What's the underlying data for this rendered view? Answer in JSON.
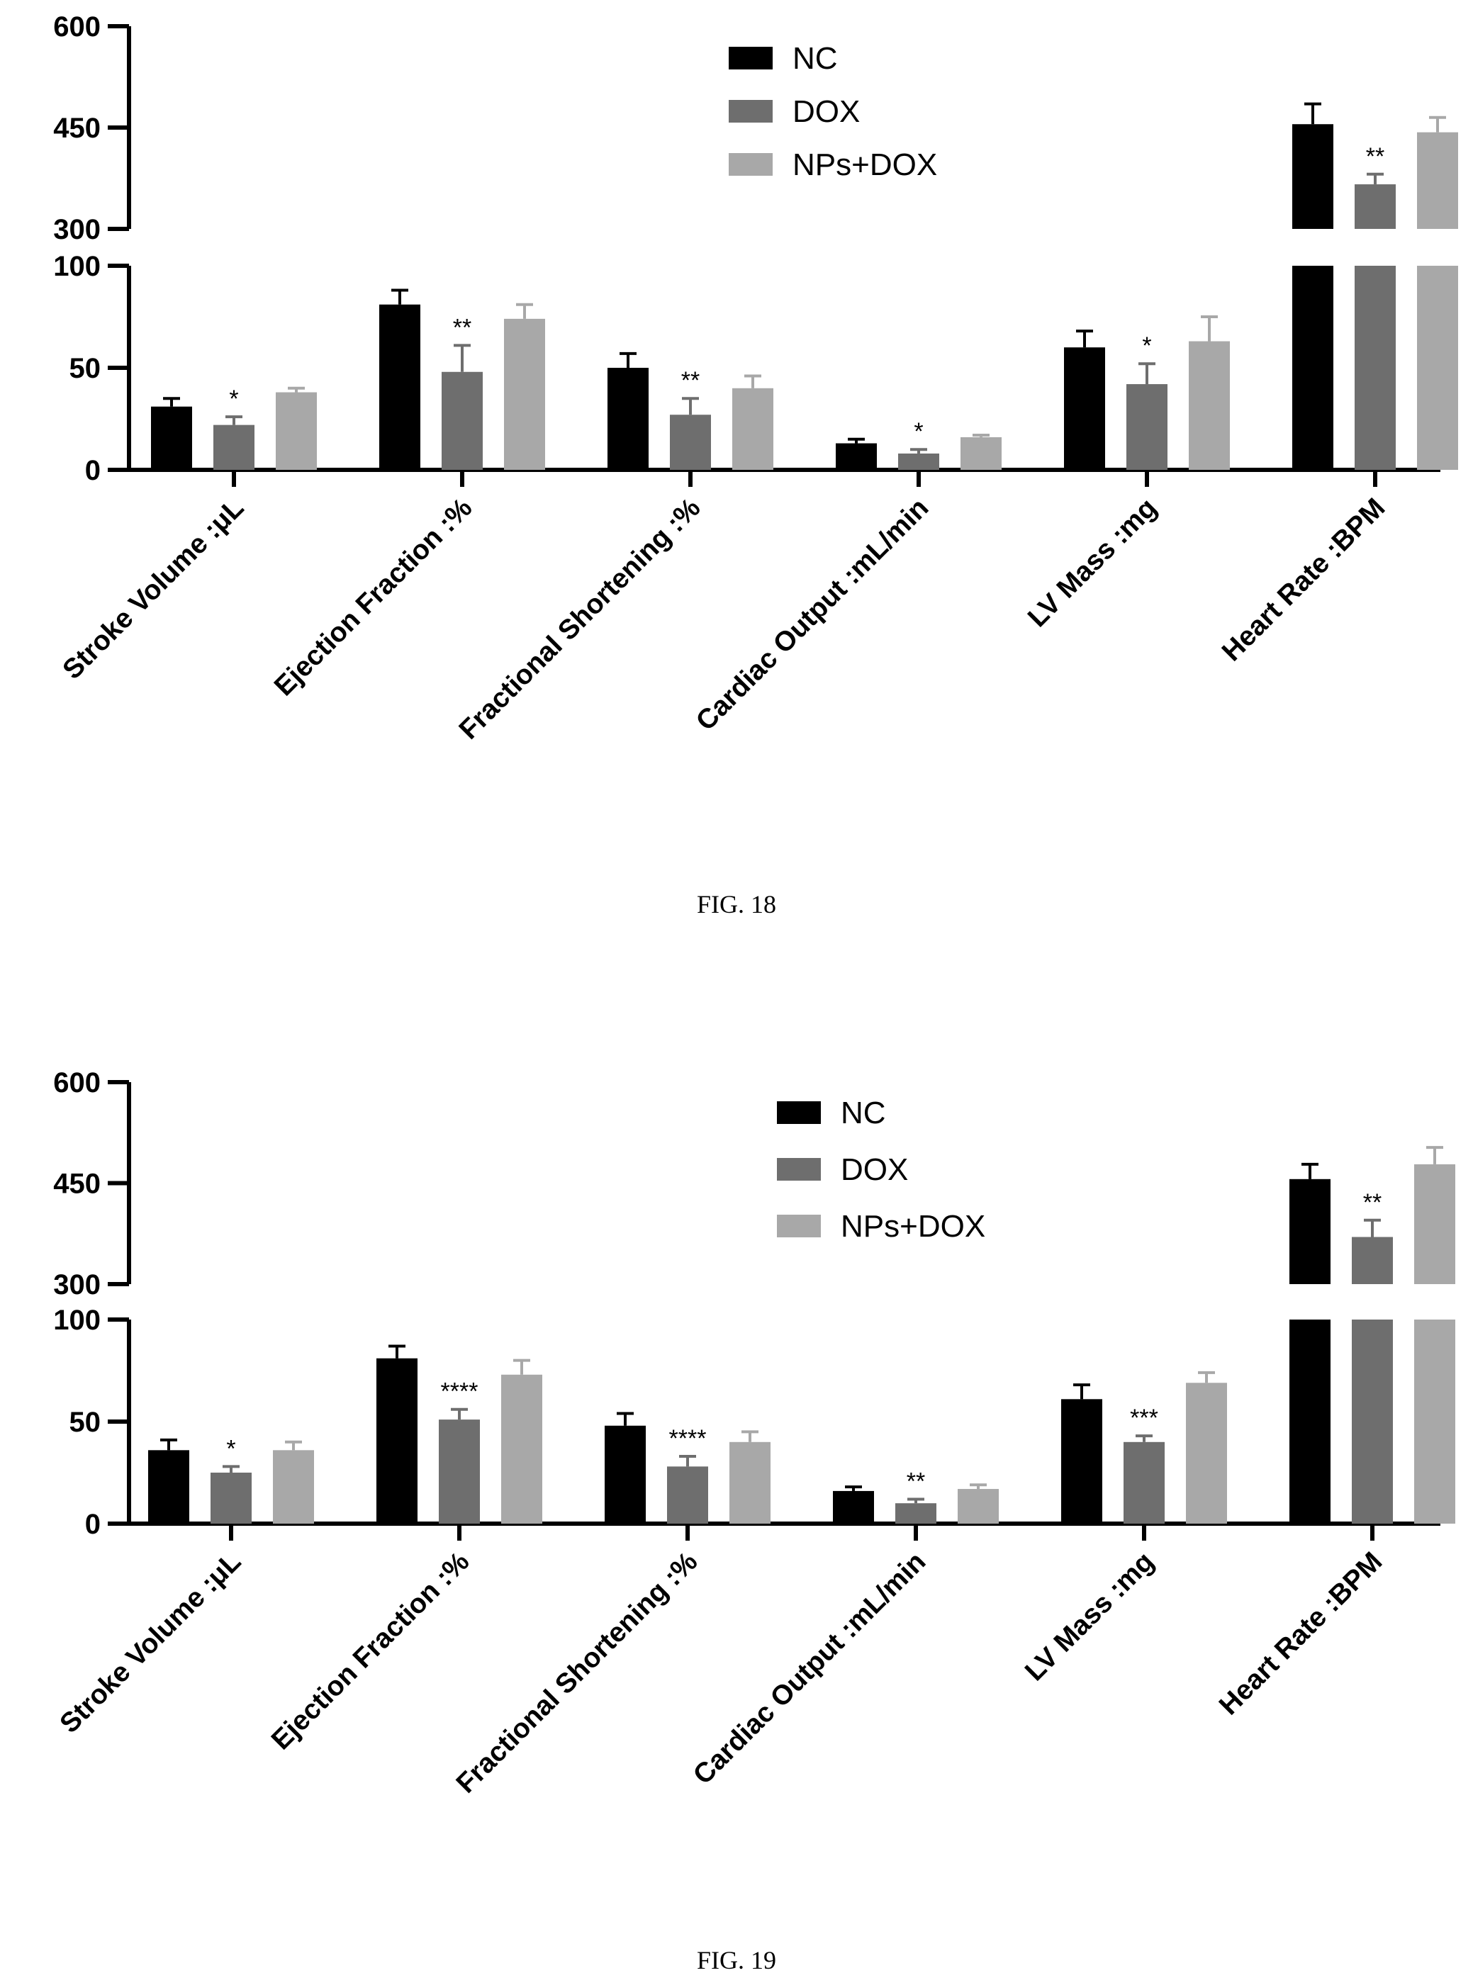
{
  "page": {
    "background": "#ffffff"
  },
  "chart_data": [
    {
      "type": "bar",
      "caption": "FIG. 18",
      "categories": [
        "Stroke Volume :μL",
        "Ejection Fraction :%",
        "Fractional Shortening :%",
        "Cardiac Output :mL/min",
        "LV Mass :mg",
        "Heart Rate :BPM"
      ],
      "series": [
        {
          "name": "NC",
          "color": "#000000",
          "values": [
            31,
            81,
            50,
            13,
            60,
            455
          ],
          "errors": [
            4,
            7,
            7,
            2,
            8,
            30
          ]
        },
        {
          "name": "DOX",
          "color": "#6e6e6e",
          "values": [
            22,
            48,
            27,
            8,
            42,
            366
          ],
          "errors": [
            4,
            13,
            8,
            2,
            10,
            15
          ]
        },
        {
          "name": "NPs+DOX",
          "color": "#a8a8a8",
          "values": [
            38,
            74,
            40,
            16,
            63,
            443
          ],
          "errors": [
            2,
            7,
            6,
            1,
            12,
            22
          ]
        }
      ],
      "significance": [
        "*",
        "**",
        "**",
        "*",
        "*",
        "**"
      ],
      "yaxis": {
        "lower_range": [
          0,
          100
        ],
        "upper_range": [
          300,
          600
        ],
        "ticks": [
          0,
          50,
          100,
          300,
          450,
          600
        ],
        "tick_labels": [
          "0",
          "50",
          "100",
          "300",
          "450",
          "600"
        ]
      },
      "legend": {
        "placement": "top-center"
      },
      "grid": false,
      "xlabel": "",
      "ylabel": ""
    },
    {
      "type": "bar",
      "caption": "FIG. 19",
      "categories": [
        "Stroke Volume :μL",
        "Ejection Fraction :%",
        "Fractional Shortening :%",
        "Cardiac Output :mL/min",
        "LV Mass :mg",
        "Heart Rate :BPM"
      ],
      "series": [
        {
          "name": "NC",
          "color": "#000000",
          "values": [
            36,
            81,
            48,
            16,
            61,
            456
          ],
          "errors": [
            5,
            6,
            6,
            2,
            7,
            22
          ]
        },
        {
          "name": "DOX",
          "color": "#6e6e6e",
          "values": [
            25,
            51,
            28,
            10,
            40,
            370
          ],
          "errors": [
            3,
            5,
            5,
            2,
            3,
            25
          ]
        },
        {
          "name": "NPs+DOX",
          "color": "#a8a8a8",
          "values": [
            36,
            73,
            40,
            17,
            69,
            478
          ],
          "errors": [
            4,
            7,
            5,
            2,
            5,
            25
          ]
        }
      ],
      "significance": [
        "*",
        "****",
        "****",
        "**",
        "***",
        "**"
      ],
      "yaxis": {
        "lower_range": [
          0,
          100
        ],
        "upper_range": [
          300,
          600
        ],
        "ticks": [
          0,
          50,
          100,
          300,
          450,
          600
        ],
        "tick_labels": [
          "0",
          "50",
          "100",
          "300",
          "450",
          "600"
        ]
      },
      "legend": {
        "placement": "top-center"
      },
      "grid": false,
      "xlabel": "",
      "ylabel": ""
    }
  ]
}
